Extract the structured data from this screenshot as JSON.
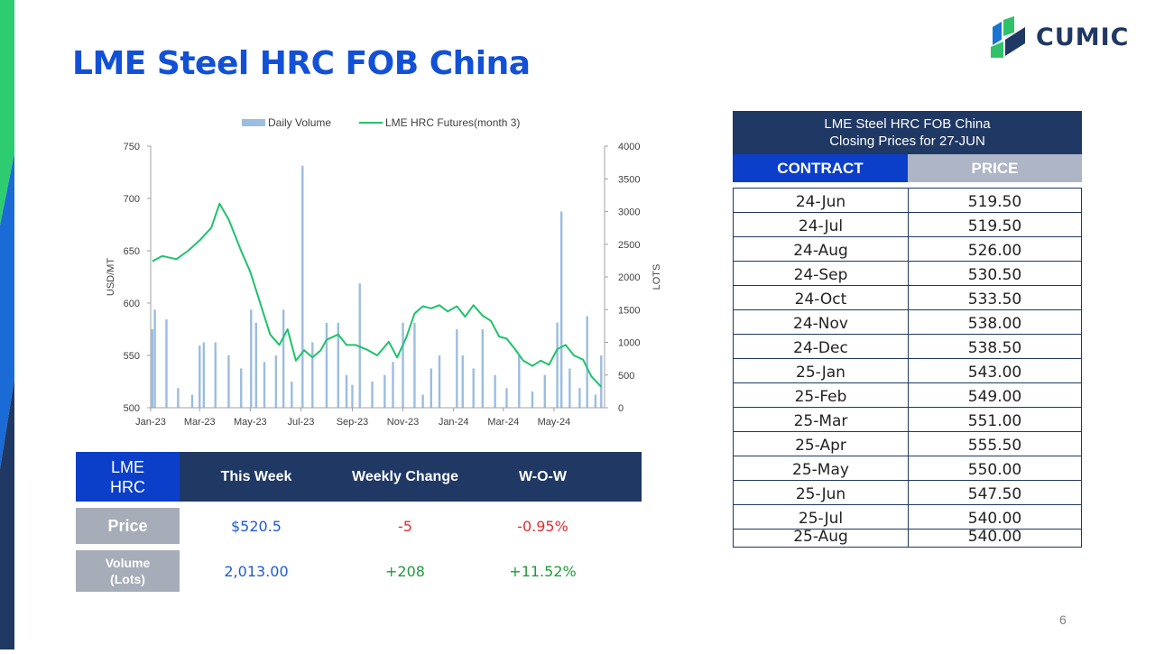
{
  "page": {
    "title": "LME Steel HRC FOB China",
    "page_number": "6"
  },
  "logo": {
    "text": "CUMIC"
  },
  "colors": {
    "navy": "#1f3864",
    "royal_blue": "#0b3fc9",
    "grey_header": "#adb5c7",
    "grey_label": "#a6acb8",
    "title_blue": "#1250d6",
    "price_blue": "#1f5bd6",
    "negative": "#e03030",
    "positive": "#1e9c3a",
    "line_green": "#1ec36b",
    "bar_blue": "#9bbde0",
    "logo_navy": "#1f3864",
    "logo_green": "#2fc26b",
    "logo_blue": "#1874d1",
    "accent_green": "#2ecc71",
    "accent_blue": "#1b6bd6"
  },
  "chart_data": {
    "type": "line",
    "legend": [
      "Daily Volume",
      "LME HRC Futures(month 3)"
    ],
    "legend_position": "top",
    "ylabel": "USD/MT",
    "y2label": "LOTS",
    "ylim": [
      500,
      750
    ],
    "y_ticks": [
      "750",
      "700",
      "650",
      "600",
      "550",
      "500"
    ],
    "y2lim": [
      0,
      4000
    ],
    "y2_ticks": [
      "4000",
      "3500",
      "3000",
      "2500",
      "2000",
      "1500",
      "1000",
      "500",
      "0"
    ],
    "x_ticks": [
      "Jan-23",
      "Mar-23",
      "May-23",
      "Jul-23",
      "Sep-23",
      "Nov-23",
      "Jan-24",
      "Mar-24",
      "May-24"
    ],
    "grid": false,
    "series": [
      {
        "name": "LME HRC Futures(month 3)",
        "type": "line",
        "x": [
          "2023-01-03",
          "2023-01-15",
          "2023-02-01",
          "2023-02-15",
          "2023-03-01",
          "2023-03-15",
          "2023-03-25",
          "2023-04-05",
          "2023-04-20",
          "2023-05-01",
          "2023-05-15",
          "2023-05-25",
          "2023-06-05",
          "2023-06-15",
          "2023-06-25",
          "2023-07-05",
          "2023-07-15",
          "2023-07-25",
          "2023-08-01",
          "2023-08-15",
          "2023-08-25",
          "2023-09-05",
          "2023-09-20",
          "2023-10-01",
          "2023-10-15",
          "2023-10-25",
          "2023-11-05",
          "2023-11-15",
          "2023-11-25",
          "2023-12-05",
          "2023-12-15",
          "2023-12-25",
          "2024-01-05",
          "2024-01-15",
          "2024-01-25",
          "2024-02-05",
          "2024-02-15",
          "2024-02-25",
          "2024-03-05",
          "2024-03-15",
          "2024-03-25",
          "2024-04-05",
          "2024-04-15",
          "2024-04-25",
          "2024-05-05",
          "2024-05-15",
          "2024-05-25",
          "2024-06-05",
          "2024-06-15",
          "2024-06-27"
        ],
        "values": [
          640,
          645,
          642,
          650,
          660,
          672,
          695,
          680,
          650,
          630,
          595,
          570,
          560,
          575,
          545,
          555,
          548,
          555,
          565,
          570,
          560,
          560,
          555,
          550,
          563,
          548,
          567,
          590,
          597,
          595,
          598,
          592,
          597,
          587,
          598,
          588,
          583,
          568,
          566,
          556,
          545,
          540,
          545,
          541,
          556,
          560,
          550,
          546,
          530,
          520
        ]
      },
      {
        "name": "Daily Volume",
        "type": "bar",
        "axis": "secondary",
        "x": [
          "2023-01-03",
          "2023-01-06",
          "2023-01-20",
          "2023-02-03",
          "2023-02-20",
          "2023-03-01",
          "2023-03-06",
          "2023-03-20",
          "2023-04-05",
          "2023-04-20",
          "2023-05-02",
          "2023-05-08",
          "2023-05-18",
          "2023-06-01",
          "2023-06-10",
          "2023-06-20",
          "2023-07-03",
          "2023-07-15",
          "2023-08-01",
          "2023-08-15",
          "2023-08-25",
          "2023-09-01",
          "2023-09-10",
          "2023-09-25",
          "2023-10-10",
          "2023-10-20",
          "2023-11-01",
          "2023-11-15",
          "2023-11-25",
          "2023-12-05",
          "2023-12-15",
          "2024-01-05",
          "2024-01-12",
          "2024-01-25",
          "2024-02-05",
          "2024-02-20",
          "2024-03-05",
          "2024-03-20",
          "2024-04-05",
          "2024-04-20",
          "2024-05-05",
          "2024-05-10",
          "2024-05-20",
          "2024-06-01",
          "2024-06-10",
          "2024-06-20",
          "2024-06-27"
        ],
        "values": [
          1200,
          1500,
          1350,
          300,
          200,
          950,
          1000,
          1000,
          800,
          600,
          1500,
          1300,
          700,
          800,
          1500,
          400,
          3700,
          1000,
          1300,
          1300,
          500,
          350,
          1900,
          400,
          500,
          700,
          1300,
          1300,
          200,
          600,
          800,
          1200,
          800,
          600,
          1200,
          500,
          300,
          800,
          250,
          500,
          1300,
          3000,
          600,
          300,
          1400,
          200,
          800
        ]
      }
    ]
  },
  "summary": {
    "corner_label": "LME\nHRC",
    "headers": [
      "This Week",
      "Weekly Change",
      "W-O-W"
    ],
    "rows": [
      {
        "label": "Price",
        "values": [
          "$520.5",
          "-5",
          "-0.95%"
        ]
      },
      {
        "label": "Volume\n(Lots)",
        "values": [
          "2,013.00",
          "+208",
          "+11.52%"
        ]
      }
    ]
  },
  "closing_table": {
    "title_line1": "LME Steel HRC FOB China",
    "title_line2": "Closing Prices for 27-JUN",
    "headers": [
      "CONTRACT",
      "PRICE"
    ],
    "rows": [
      {
        "contract": "24-Jun",
        "price": "519.50"
      },
      {
        "contract": "24-Jul",
        "price": "519.50"
      },
      {
        "contract": "24-Aug",
        "price": "526.00"
      },
      {
        "contract": "24-Sep",
        "price": "530.50"
      },
      {
        "contract": "24-Oct",
        "price": "533.50"
      },
      {
        "contract": "24-Nov",
        "price": "538.00"
      },
      {
        "contract": "24-Dec",
        "price": "538.50"
      },
      {
        "contract": "25-Jan",
        "price": "543.00"
      },
      {
        "contract": "25-Feb",
        "price": "549.00"
      },
      {
        "contract": "25-Mar",
        "price": "551.00"
      },
      {
        "contract": "25-Apr",
        "price": "555.50"
      },
      {
        "contract": "25-May",
        "price": "550.00"
      },
      {
        "contract": "25-Jun",
        "price": "547.50"
      },
      {
        "contract": "25-Jul",
        "price": "540.00"
      },
      {
        "contract": "25-Aug",
        "price": "540.00"
      }
    ]
  }
}
